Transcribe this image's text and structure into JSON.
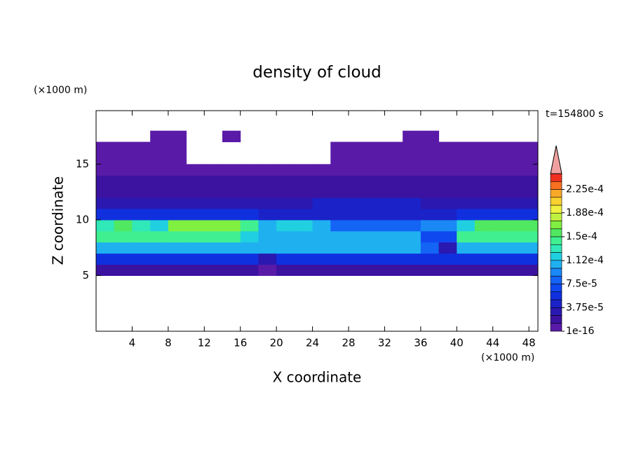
{
  "chart_data": {
    "type": "contour",
    "title": "density of cloud",
    "xlabel": "X coordinate",
    "ylabel": "Z coordinate",
    "x_unit": "(×1000 m)",
    "y_unit": "(×1000 m)",
    "annotation": "t=154800 s",
    "xlim": [
      0,
      49
    ],
    "ylim": [
      0,
      19.8
    ],
    "xticks": [
      4,
      8,
      12,
      16,
      20,
      24,
      28,
      32,
      36,
      40,
      44,
      48
    ],
    "yticks": [
      5,
      10,
      15
    ],
    "x_edges": [
      0,
      2,
      4,
      6,
      8,
      10,
      12,
      14,
      16,
      18,
      20,
      22,
      24,
      26,
      28,
      30,
      32,
      34,
      36,
      38,
      40,
      42,
      44,
      46,
      48,
      50
    ],
    "z_edges": [
      5,
      6,
      7,
      8,
      9,
      10,
      11,
      12,
      13,
      14,
      15,
      16,
      17,
      18
    ],
    "values": [
      [
        2e-05,
        2e-05,
        2e-05,
        2e-05,
        2e-05,
        2e-05,
        2e-05,
        2e-05,
        2e-05,
        5e-06,
        2e-05,
        2e-05,
        2e-05,
        2e-05,
        2e-05,
        2e-05,
        2e-05,
        2e-05,
        2e-05,
        2e-05,
        2e-05,
        2e-05,
        2e-05,
        2e-05,
        2e-05
      ],
      [
        6e-05,
        6e-05,
        6e-05,
        6e-05,
        6e-05,
        6e-05,
        6e-05,
        6e-05,
        6e-05,
        3e-05,
        6e-05,
        6e-05,
        6e-05,
        6e-05,
        6e-05,
        6e-05,
        6e-05,
        6e-05,
        5e-05,
        5e-05,
        6e-05,
        6e-05,
        6e-05,
        6e-05,
        6e-05
      ],
      [
        0.00011,
        0.00011,
        0.00011,
        0.00011,
        0.00011,
        0.00011,
        0.00011,
        0.00011,
        0.00011,
        0.00011,
        0.00011,
        0.00011,
        0.00011,
        0.00011,
        0.00011,
        0.00011,
        0.00011,
        0.00011,
        8e-05,
        3e-05,
        0.00011,
        0.00011,
        0.00011,
        0.00011,
        0.00011
      ],
      [
        0.000145,
        0.000145,
        0.000145,
        0.000145,
        0.000145,
        0.000145,
        0.000145,
        0.000145,
        0.00012,
        0.00011,
        0.00011,
        0.00011,
        0.00011,
        0.00011,
        0.00011,
        0.00011,
        0.00011,
        0.00011,
        7e-05,
        7e-05,
        0.000145,
        0.000145,
        0.000145,
        0.000145,
        0.000145
      ],
      [
        0.00013,
        0.00016,
        0.00013,
        0.00012,
        0.000165,
        0.000165,
        0.000165,
        0.000165,
        0.00014,
        0.0001,
        0.00012,
        0.00012,
        0.0001,
        8e-05,
        8e-05,
        8e-05,
        8e-05,
        8e-05,
        9e-05,
        9e-05,
        0.00012,
        0.00016,
        0.00016,
        0.00016,
        0.00016
      ],
      [
        6e-05,
        6e-05,
        6e-05,
        6e-05,
        5e-05,
        5e-05,
        5e-05,
        5e-05,
        6e-05,
        4e-05,
        4e-05,
        4e-05,
        4e-05,
        4e-05,
        4e-05,
        4e-05,
        4e-05,
        4e-05,
        4e-05,
        4e-05,
        5e-05,
        5e-05,
        5e-05,
        5e-05,
        5e-05
      ],
      [
        3e-05,
        3e-05,
        3e-05,
        3e-05,
        3e-05,
        3e-05,
        3e-05,
        3e-05,
        3e-05,
        3e-05,
        3e-05,
        3e-05,
        4e-05,
        4e-05,
        4e-05,
        4e-05,
        4e-05,
        4e-05,
        3e-05,
        3e-05,
        3e-05,
        3e-05,
        3e-05,
        3e-05,
        3e-05
      ],
      [
        2e-05,
        2e-05,
        2e-05,
        2e-05,
        2e-05,
        2e-05,
        2e-05,
        2e-05,
        2e-05,
        2e-05,
        2e-05,
        2e-05,
        2e-05,
        2e-05,
        2e-05,
        2e-05,
        2e-05,
        2e-05,
        2e-05,
        2e-05,
        2e-05,
        2e-05,
        2e-05,
        2e-05,
        2e-05
      ],
      [
        1.5e-05,
        1.5e-05,
        1.5e-05,
        1.5e-05,
        1.5e-05,
        1.5e-05,
        1.5e-05,
        1.5e-05,
        1.5e-05,
        1.5e-05,
        1.5e-05,
        1.5e-05,
        1.5e-05,
        1.5e-05,
        1.5e-05,
        1.5e-05,
        1.5e-05,
        1.5e-05,
        1.5e-05,
        1.5e-05,
        1.5e-05,
        1.5e-05,
        1.5e-05,
        1.5e-05,
        1.5e-05
      ],
      [
        1.2e-05,
        1.2e-05,
        1.2e-05,
        1.2e-05,
        1.2e-05,
        1.2e-05,
        1.2e-05,
        1.2e-05,
        1.2e-05,
        1.2e-05,
        1.2e-05,
        1.2e-05,
        1.2e-05,
        1.2e-05,
        1.2e-05,
        1.2e-05,
        1.2e-05,
        1.2e-05,
        1.2e-05,
        1.2e-05,
        1.2e-05,
        1.2e-05,
        1.2e-05,
        1.2e-05,
        1.2e-05
      ],
      [
        5e-06,
        5e-06,
        5e-06,
        5e-06,
        5e-06,
        0,
        0,
        0,
        0,
        0,
        0,
        0,
        0,
        5e-06,
        5e-06,
        5e-06,
        5e-06,
        5e-06,
        5e-06,
        5e-06,
        5e-06,
        5e-06,
        5e-06,
        5e-06,
        5e-06
      ],
      [
        5e-06,
        5e-06,
        5e-06,
        5e-06,
        5e-06,
        0,
        0,
        0,
        0,
        0,
        0,
        0,
        0,
        5e-06,
        5e-06,
        5e-06,
        5e-06,
        5e-06,
        5e-06,
        5e-06,
        5e-06,
        5e-06,
        5e-06,
        5e-06,
        5e-06
      ],
      [
        0,
        0,
        0,
        5e-06,
        5e-06,
        0,
        0,
        5e-06,
        0,
        0,
        0,
        0,
        0,
        0,
        0,
        0,
        0,
        5e-06,
        5e-06,
        0,
        0,
        0,
        0,
        0,
        0
      ]
    ],
    "levels": [
      1e-16,
      1.25e-05,
      2.5e-05,
      3.75e-05,
      5e-05,
      6.25e-05,
      7.5e-05,
      8.75e-05,
      0.0001,
      0.0001125,
      0.000125,
      0.0001375,
      0.00015,
      0.0001625,
      0.000175,
      0.0001875,
      0.0002,
      0.0002125,
      0.000225,
      0.0002375,
      0.00025
    ],
    "colors": [
      "#5a1aa8",
      "#3c12a0",
      "#2a18b0",
      "#1a22c8",
      "#1030e0",
      "#1048f0",
      "#1464f5",
      "#1a88f5",
      "#1fb0f0",
      "#20d0e0",
      "#30e8b8",
      "#40f090",
      "#50e860",
      "#80f040",
      "#c0f040",
      "#f0f040",
      "#f8d030",
      "#f8a828",
      "#f87020",
      "#f03020"
    ],
    "extend_color": "#f0a0a0",
    "cbar_ticks": [
      {
        "value": 1e-16,
        "label": "1e-16"
      },
      {
        "value": 3.75e-05,
        "label": "3.75e-5"
      },
      {
        "value": 7.5e-05,
        "label": "7.5e-5"
      },
      {
        "value": 0.000112,
        "label": "1.12e-4"
      },
      {
        "value": 0.00015,
        "label": "1.5e-4"
      },
      {
        "value": 0.000188,
        "label": "1.88e-4"
      },
      {
        "value": 0.000225,
        "label": "2.25e-4"
      }
    ]
  }
}
